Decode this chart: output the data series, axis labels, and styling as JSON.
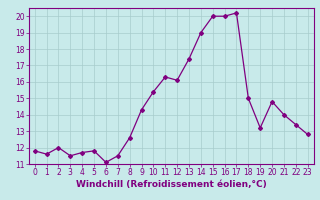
{
  "x": [
    0,
    1,
    2,
    3,
    4,
    5,
    6,
    7,
    8,
    9,
    10,
    11,
    12,
    13,
    14,
    15,
    16,
    17,
    18,
    19,
    20,
    21,
    22,
    23
  ],
  "y": [
    11.8,
    11.6,
    12.0,
    11.5,
    11.7,
    11.8,
    11.1,
    11.5,
    12.6,
    14.3,
    15.4,
    16.3,
    16.1,
    17.4,
    19.0,
    20.0,
    20.0,
    20.2,
    15.0,
    13.2,
    14.8,
    14.0,
    13.4,
    12.8
  ],
  "line_color": "#800080",
  "marker": "D",
  "markersize": 2.0,
  "linewidth": 0.9,
  "background_color": "#c8eaea",
  "grid_color": "#a8cccc",
  "xlabel": "Windchill (Refroidissement éolien,°C)",
  "xlabel_fontsize": 6.5,
  "ylim": [
    11,
    20.5
  ],
  "xlim": [
    -0.5,
    23.5
  ],
  "yticks": [
    11,
    12,
    13,
    14,
    15,
    16,
    17,
    18,
    19,
    20
  ],
  "xticks": [
    0,
    1,
    2,
    3,
    4,
    5,
    6,
    7,
    8,
    9,
    10,
    11,
    12,
    13,
    14,
    15,
    16,
    17,
    18,
    19,
    20,
    21,
    22,
    23
  ],
  "tick_label_fontsize": 5.5,
  "tick_color": "#800080",
  "spine_color": "#800080"
}
